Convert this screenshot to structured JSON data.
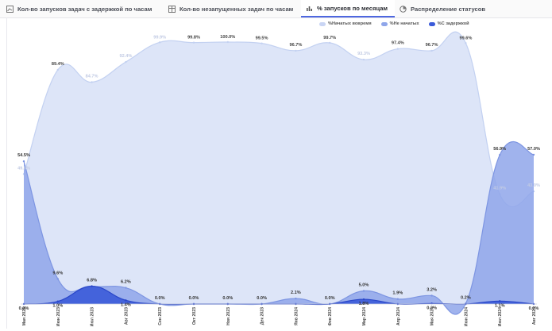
{
  "tabs": [
    {
      "label": "Кол-во запусков задач с задержкой по часам",
      "icon": "chart-icon"
    },
    {
      "label": "Кол-во незапущенных задач по часам",
      "icon": "table-icon"
    },
    {
      "label": "% запусков по месяцам",
      "icon": "bar-chart-icon",
      "active": true
    },
    {
      "label": "Распределение статусов",
      "icon": "pie-icon"
    }
  ],
  "colors": {
    "on_time": "#dde5f8",
    "on_time_line": "#c3d1f1",
    "not_started": "#8fa6ea",
    "not_started_line": "#7d95e2",
    "delayed": "#3b5bd9",
    "delayed_line": "#2a47c9"
  },
  "chart_data": {
    "type": "area",
    "categories": [
      "Мая 2023",
      "Июн 2023",
      "Июл 2023",
      "Авг 2023",
      "Сен 2023",
      "Окт 2023",
      "Ноя 2023",
      "Дек 2023",
      "Янв 2024",
      "Фев 2024",
      "Мар 2024",
      "Апр 2024",
      "Мая 2024",
      "Июн 2024",
      "Июл 2024",
      "Авг 2024"
    ],
    "series": [
      {
        "name": "%Начатых вовремя",
        "values": [
          49.6,
          89.4,
          84.7,
          92.4,
          99.9,
          99.8,
          100.0,
          99.5,
          96.7,
          99.7,
          93.3,
          97.4,
          96.7,
          99.6,
          41.9,
          43.0
        ],
        "labels": [
          "49.6%",
          "89.4%",
          "84.7%",
          "92.4%",
          "99.9%",
          "99.8%",
          "100.0%",
          "99.5%",
          "96.7%",
          "99.7%",
          "93.3%",
          "97.4%",
          "96.7%",
          "99.6%",
          "41.9%",
          "43.0%"
        ]
      },
      {
        "name": "%Не начатых",
        "values": [
          54.5,
          9.6,
          6.8,
          6.2,
          0.0,
          0.0,
          0.0,
          0.0,
          2.1,
          0.0,
          5.0,
          1.9,
          3.2,
          0.2,
          56.9,
          57.0
        ],
        "labels": [
          "54.5%",
          "9.6%",
          "6.8%",
          "6.2%",
          "0.0%",
          "0.0%",
          "0.0%",
          "0.0%",
          "2.1%",
          "0.0%",
          "5.0%",
          "1.9%",
          "3.2%",
          "0.2%",
          "56.9%",
          "57.0%"
        ]
      },
      {
        "name": "%С задержкой",
        "values": [
          0.0,
          1.0,
          6.8,
          1.4,
          0.0,
          0.0,
          0.0,
          0.0,
          0.0,
          0.0,
          1.8,
          0.0,
          0.2,
          0.0,
          1.1,
          0.0
        ],
        "labels": [
          "0.0%",
          "1.0%",
          "",
          "1.4%",
          "",
          "",
          "",
          "",
          "",
          "",
          "1.8%",
          "",
          "0.2%",
          "",
          "1.1%",
          "0.0%"
        ]
      }
    ],
    "ylim": [
      0,
      100
    ],
    "legend": "top-center",
    "grid": false
  }
}
